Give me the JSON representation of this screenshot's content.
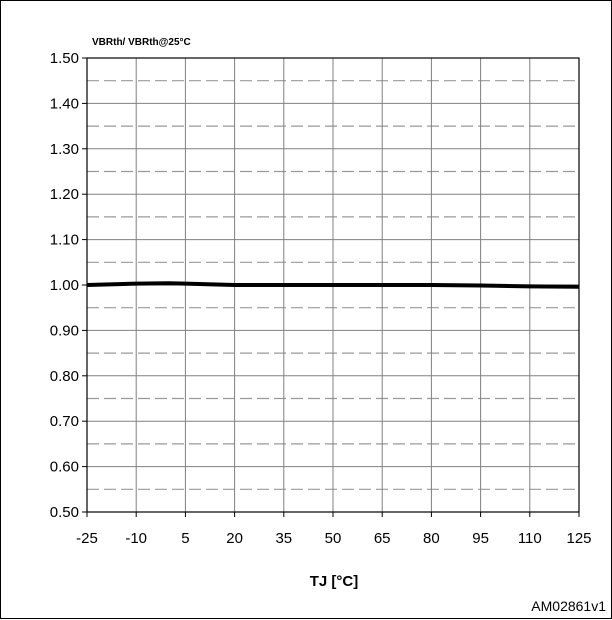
{
  "chart_data": {
    "type": "line",
    "title": "",
    "ylabel": "VBRth/ VBRth@25°C",
    "xlabel": "TJ [°C]",
    "xlim": [
      -25,
      125
    ],
    "ylim": [
      0.5,
      1.5
    ],
    "x_ticks": [
      "-25",
      "-10",
      "5",
      "20",
      "35",
      "50",
      "65",
      "80",
      "95",
      "110",
      "125"
    ],
    "y_ticks": [
      "0.50",
      "0.60",
      "0.70",
      "0.80",
      "0.90",
      "1.00",
      "1.10",
      "1.20",
      "1.30",
      "1.40",
      "1.50"
    ],
    "grid": true,
    "series": [
      {
        "x": [
          -25,
          -10,
          0,
          5,
          20,
          35,
          50,
          65,
          80,
          95,
          110,
          125
        ],
        "y": [
          1.0,
          1.003,
          1.004,
          1.003,
          1.0,
          1.0,
          1.0,
          1.0,
          1.0,
          0.999,
          0.997,
          0.996
        ]
      }
    ],
    "annotation": "AM02861v1",
    "colors": {
      "line": "#000000",
      "major_grid": "#808080",
      "minor_grid": "#999999"
    }
  }
}
